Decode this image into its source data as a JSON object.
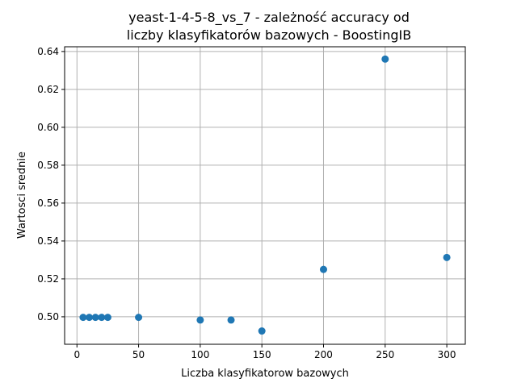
{
  "chart_data": {
    "type": "scatter",
    "title_lines": [
      "yeast-1-4-5-8_vs_7 - zależność accuracy od",
      "liczby klasyfikatorów bazowych - BoostingIB"
    ],
    "xlabel": "Liczba klasyfikatorow bazowych",
    "ylabel": "Wartosci srednie",
    "xlim": [
      -10,
      315
    ],
    "ylim": [
      0.4855,
      0.6425
    ],
    "x_ticks": [
      0,
      50,
      100,
      150,
      200,
      250,
      300
    ],
    "x_tick_labels": [
      "0",
      "50",
      "100",
      "150",
      "200",
      "250",
      "300"
    ],
    "y_ticks": [
      0.5,
      0.52,
      0.54,
      0.56,
      0.58,
      0.6,
      0.62,
      0.64
    ],
    "y_tick_labels": [
      "0.50",
      "0.52",
      "0.54",
      "0.56",
      "0.58",
      "0.60",
      "0.62",
      "0.64"
    ],
    "grid": true,
    "marker_color": "#1f77b4",
    "points": [
      {
        "x": 5,
        "y": 0.4997
      },
      {
        "x": 10,
        "y": 0.4997
      },
      {
        "x": 15,
        "y": 0.4997
      },
      {
        "x": 20,
        "y": 0.4997
      },
      {
        "x": 25,
        "y": 0.4997
      },
      {
        "x": 50,
        "y": 0.4997
      },
      {
        "x": 100,
        "y": 0.4983
      },
      {
        "x": 125,
        "y": 0.4983
      },
      {
        "x": 150,
        "y": 0.4925
      },
      {
        "x": 200,
        "y": 0.525
      },
      {
        "x": 250,
        "y": 0.636
      },
      {
        "x": 300,
        "y": 0.5313
      }
    ]
  }
}
